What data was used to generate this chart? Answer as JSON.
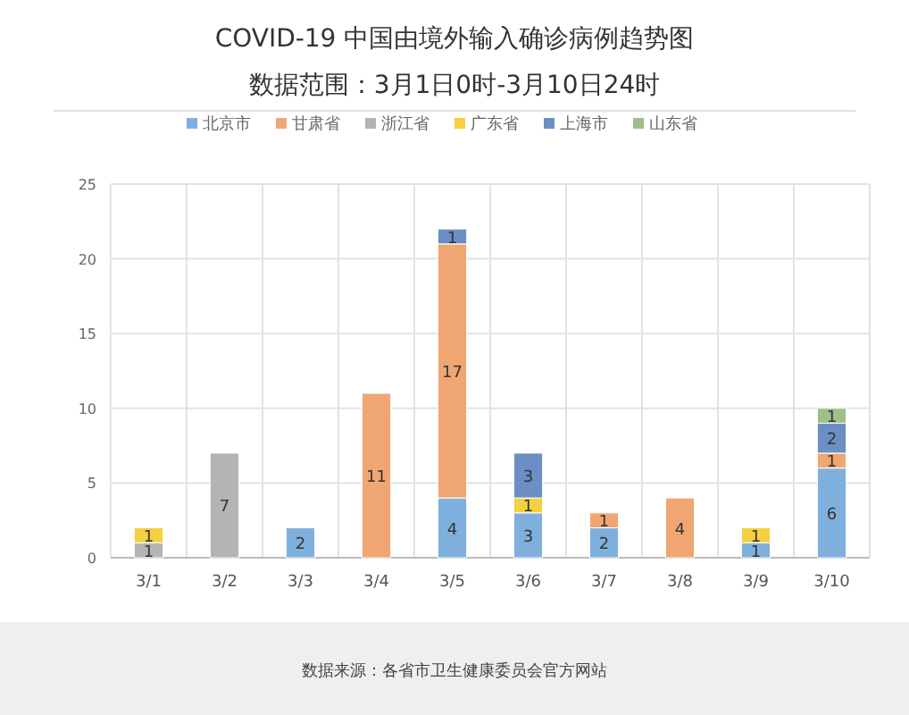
{
  "chart_data": {
    "type": "bar",
    "title": "COVID-19 中国由境外输入确诊病例趋势图",
    "subtitle": "数据范围：3月1日0时-3月10日24时",
    "categories": [
      "3/1",
      "3/2",
      "3/3",
      "3/4",
      "3/5",
      "3/6",
      "3/7",
      "3/8",
      "3/9",
      "3/10"
    ],
    "series": [
      {
        "name": "北京市",
        "color": "#7fb0dd",
        "values": [
          null,
          null,
          2,
          null,
          4,
          3,
          2,
          null,
          1,
          6
        ]
      },
      {
        "name": "甘肃省",
        "color": "#f0a672",
        "values": [
          null,
          null,
          null,
          11,
          17,
          null,
          1,
          4,
          null,
          1
        ]
      },
      {
        "name": "浙江省",
        "color": "#b4b4b4",
        "values": [
          1,
          7,
          null,
          null,
          null,
          null,
          null,
          null,
          null,
          null
        ]
      },
      {
        "name": "广东省",
        "color": "#f5d040",
        "values": [
          1,
          null,
          null,
          null,
          null,
          1,
          null,
          null,
          1,
          null
        ]
      },
      {
        "name": "上海市",
        "color": "#6b8fc4",
        "values": [
          null,
          null,
          null,
          null,
          1,
          3,
          null,
          null,
          null,
          2
        ]
      },
      {
        "name": "山东省",
        "color": "#9fbe8a",
        "values": [
          null,
          null,
          null,
          null,
          null,
          null,
          null,
          null,
          null,
          1
        ]
      }
    ],
    "stacked": true,
    "ylim": [
      0,
      25
    ],
    "yticks": [
      0,
      5,
      10,
      15,
      20,
      25
    ],
    "grid": true,
    "legend": "top",
    "data_labels": true,
    "annotations": [
      "数据来源：各省市卫生健康委员会官方网站"
    ]
  }
}
